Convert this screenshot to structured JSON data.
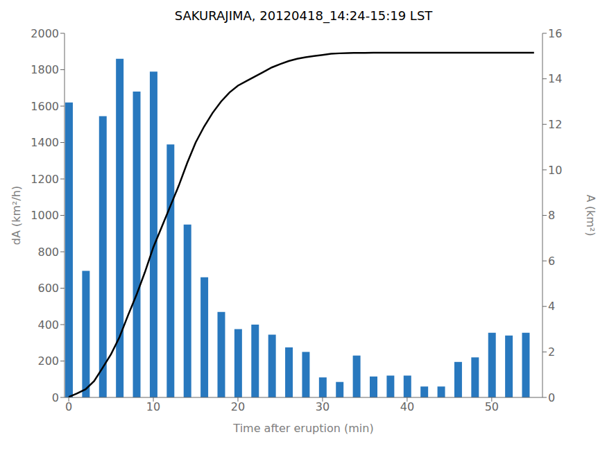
{
  "chart_data": {
    "type": "bar",
    "title": "SAKURAJIMA, 20120418_14:24-15:19 LST",
    "x_label": "Time after eruption (min)",
    "y_label": "dA (km²/h)",
    "y2_label": "A (km²)",
    "xlim": [
      -0.5,
      56
    ],
    "xticks": [
      0,
      10,
      20,
      30,
      40,
      50
    ],
    "ylim": [
      0,
      2000
    ],
    "yticks": [
      0,
      200,
      400,
      600,
      800,
      1000,
      1200,
      1400,
      1600,
      1800,
      2000
    ],
    "y2lim": [
      0,
      16
    ],
    "y2ticks": [
      0,
      2,
      4,
      6,
      8,
      10,
      12,
      14,
      16
    ],
    "grid": false,
    "series": [
      {
        "type": "bar",
        "color": "#2878BE",
        "x": [
          0,
          2,
          4,
          6,
          8,
          10,
          12,
          14,
          16,
          18,
          20,
          22,
          24,
          26,
          28,
          30,
          32,
          34,
          36,
          38,
          40,
          42,
          44,
          46,
          48,
          50,
          52,
          54
        ],
        "values": [
          1620,
          695,
          1545,
          1860,
          1680,
          1790,
          1390,
          950,
          660,
          470,
          375,
          400,
          345,
          275,
          250,
          110,
          85,
          230,
          115,
          120,
          120,
          60,
          60,
          195,
          220,
          355,
          340,
          355
        ]
      },
      {
        "type": "line",
        "color": "#000000",
        "axis": "y2",
        "x": [
          0,
          1,
          2,
          3,
          4,
          5,
          6,
          7,
          8,
          9,
          10,
          11,
          12,
          13,
          14,
          15,
          16,
          17,
          18,
          19,
          20,
          21,
          22,
          23,
          24,
          25,
          26,
          27,
          28,
          29,
          30,
          31,
          32,
          33,
          34,
          35,
          36,
          37,
          38,
          39,
          40,
          41,
          42,
          43,
          44,
          45,
          46,
          47,
          48,
          49,
          50,
          51,
          52,
          53,
          54,
          55
        ],
        "values": [
          0.02,
          0.18,
          0.36,
          0.72,
          1.3,
          1.9,
          2.65,
          3.6,
          4.5,
          5.5,
          6.6,
          7.5,
          8.4,
          9.3,
          10.3,
          11.2,
          11.9,
          12.5,
          13.0,
          13.4,
          13.7,
          13.9,
          14.1,
          14.3,
          14.5,
          14.65,
          14.78,
          14.88,
          14.95,
          15.0,
          15.05,
          15.1,
          15.12,
          15.13,
          15.14,
          15.14,
          15.15,
          15.15,
          15.15,
          15.15,
          15.15,
          15.15,
          15.15,
          15.15,
          15.15,
          15.15,
          15.15,
          15.15,
          15.15,
          15.15,
          15.15,
          15.15,
          15.15,
          15.15,
          15.15,
          15.15
        ]
      }
    ]
  }
}
